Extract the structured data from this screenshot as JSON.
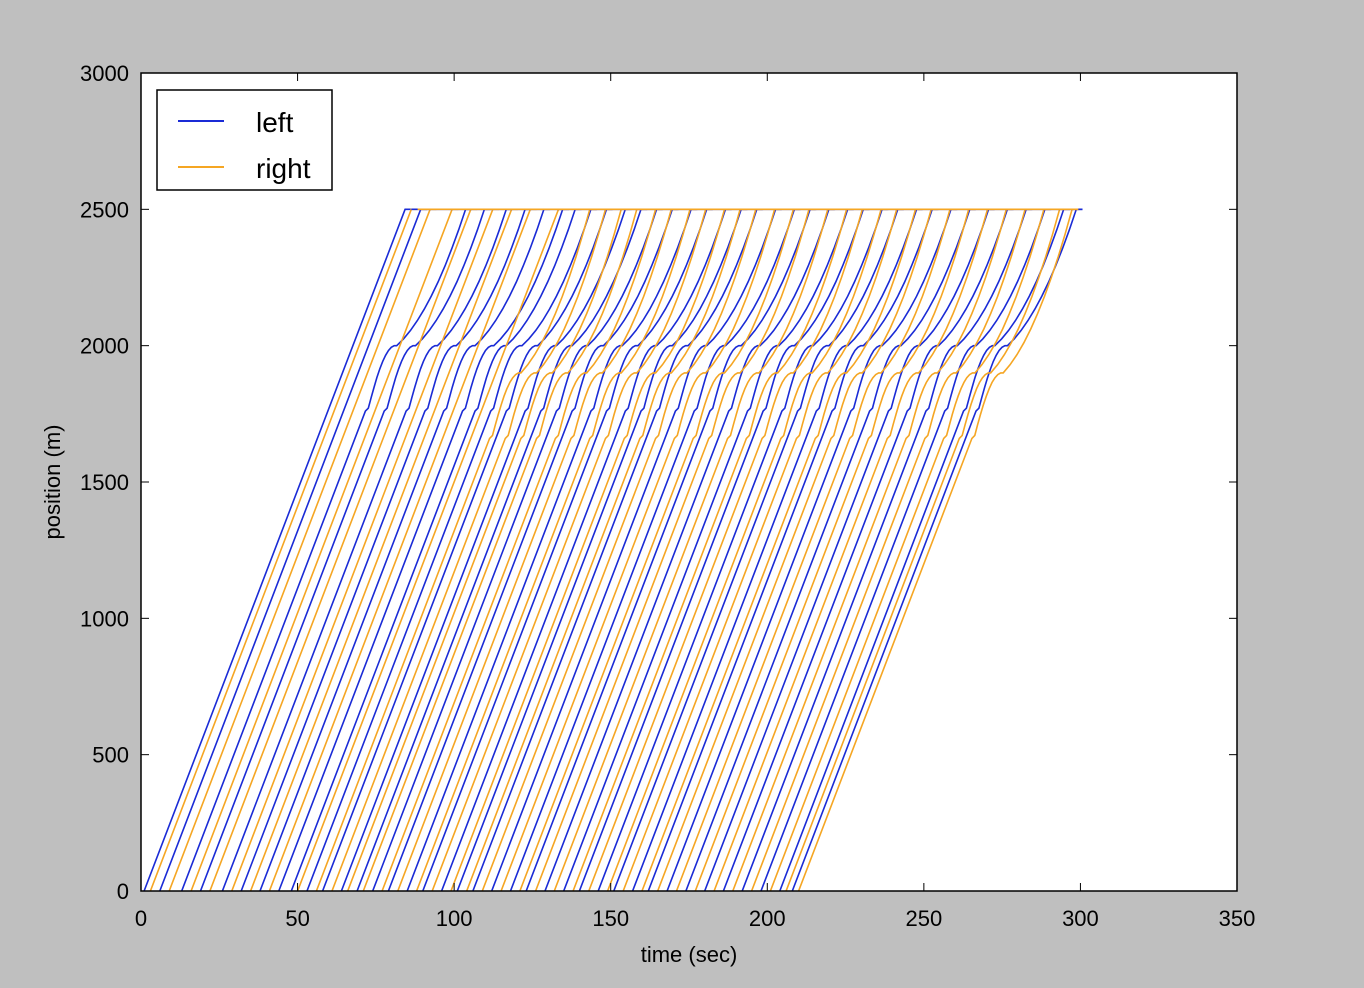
{
  "chart_data": {
    "type": "line",
    "title": "",
    "xlabel": "time (sec)",
    "ylabel": "position (m)",
    "xlim": [
      0,
      350
    ],
    "ylim": [
      0,
      3000
    ],
    "xticks": [
      "0",
      "50",
      "100",
      "150",
      "200",
      "250",
      "300",
      "350"
    ],
    "yticks": [
      "0",
      "500",
      "1000",
      "1500",
      "2000",
      "2500",
      "3000"
    ],
    "grid": false,
    "legend": {
      "placement": "top-left",
      "entries": [
        "left",
        "right"
      ]
    },
    "colors": {
      "left": "#1a2bd6",
      "right": "#f5a623",
      "background": "#bfbfbf",
      "plot_area": "#ffffff"
    },
    "series": [
      {
        "name": "left",
        "start_times": [
          1,
          6,
          13,
          19,
          26,
          32,
          38,
          44,
          48,
          53,
          58,
          64,
          69,
          74,
          79,
          85,
          90,
          96,
          101,
          106,
          112,
          118,
          123,
          129,
          135,
          140,
          146,
          151,
          157,
          162,
          168,
          174,
          180,
          186,
          192,
          198,
          204,
          208
        ],
        "free_speed": 30,
        "end_position": 2500,
        "queue_position": 2000,
        "queue_release_time": 100
      },
      {
        "name": "right",
        "start_times": [
          3,
          9,
          16,
          22,
          29,
          35,
          41,
          50,
          56,
          61,
          66,
          71,
          77,
          82,
          88,
          93,
          99,
          104,
          109,
          115,
          121,
          126,
          132,
          138,
          143,
          149,
          154,
          160,
          165,
          171,
          177,
          183,
          189,
          195,
          201,
          206,
          210
        ],
        "free_speed": 30,
        "end_position": 2500,
        "queue_position": 1900,
        "queue_release_time": 140
      }
    ]
  }
}
